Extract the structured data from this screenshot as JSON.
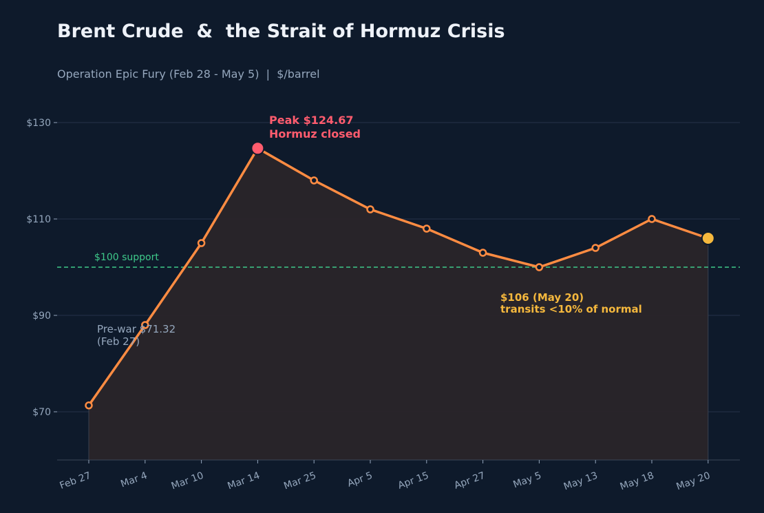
{
  "title": "Brent Crude  &  the Strait of Hormuz Crisis",
  "subtitle": "Operation Epic Fury (Feb 28 - May 5)  |  $/barrel",
  "colors": {
    "background": "#0e1a2b",
    "line": "#ff8c42",
    "area_fill": "#2a2529",
    "peak": "#ff5c6e",
    "latest": "#f5b83d",
    "support": "#3ec98a",
    "grid": "#26334a",
    "text_muted": "#95a7bd"
  },
  "chart_data": {
    "type": "line",
    "title": "Brent Crude  &  the Strait of Hormuz Crisis",
    "subtitle": "Operation Epic Fury (Feb 28 - May 5)  |  $/barrel",
    "xlabel": "",
    "ylabel": "",
    "categories": [
      "Feb 27",
      "Mar 4",
      "Mar 10",
      "Mar 14",
      "Mar 25",
      "Apr 5",
      "Apr 15",
      "Apr 27",
      "May 5",
      "May 13",
      "May 18",
      "May 20"
    ],
    "series": [
      {
        "values": [
          71.32,
          88,
          105,
          124.67,
          118,
          112,
          108,
          103,
          100,
          104,
          110,
          106
        ]
      }
    ],
    "ylim": [
      60,
      134
    ],
    "yticks": [
      70,
      90,
      110,
      130
    ],
    "ytick_labels": [
      "$70",
      "$90",
      "$110",
      "$130"
    ],
    "grid": true,
    "reference_line": {
      "value": 100,
      "label": "$100 support"
    },
    "annotations": {
      "peak": {
        "index": 3,
        "line1": "Peak  $124.67",
        "line2": "Hormuz closed"
      },
      "prewar": {
        "index": 0,
        "line1": "Pre-war $71.32",
        "line2": "(Feb 27)"
      },
      "latest": {
        "index": 11,
        "line1": "$106  (May 20)",
        "line2": "transits <10% of normal"
      }
    }
  }
}
